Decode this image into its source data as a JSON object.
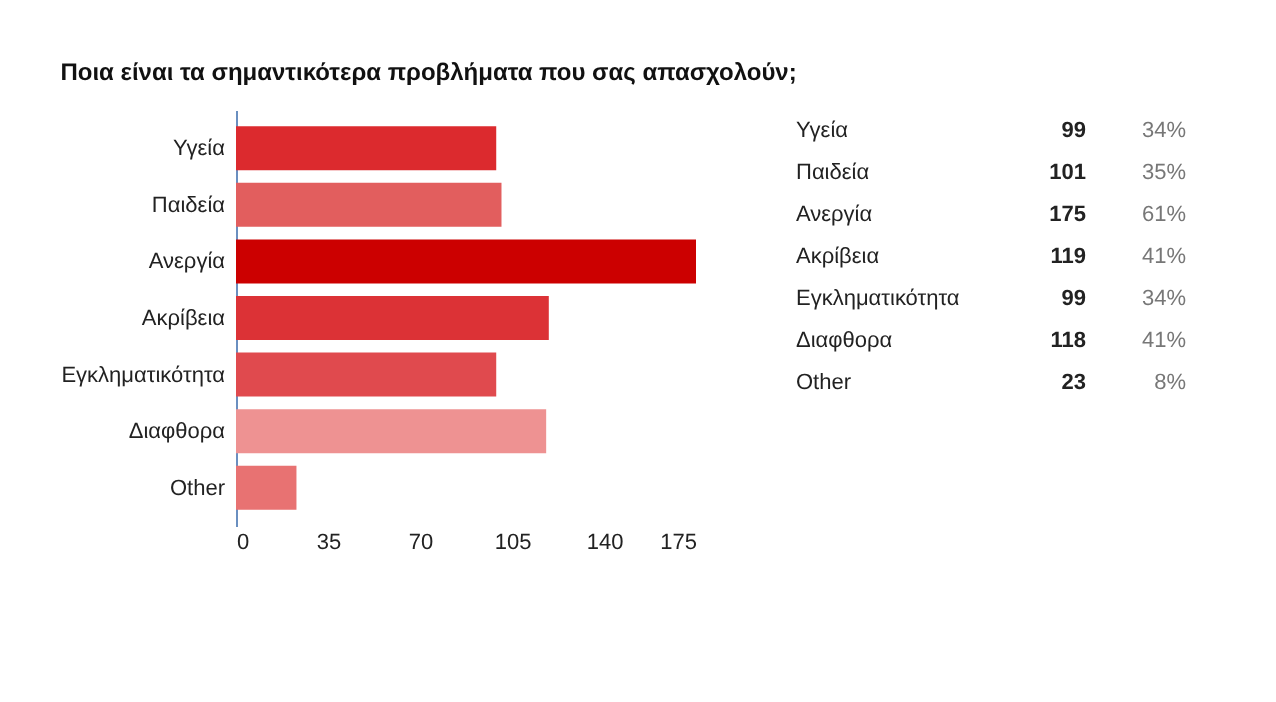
{
  "chart_data": [
    {
      "type": "bar",
      "orientation": "horizontal",
      "title": "Ποια είναι τα σημαντικότερα προβλήματα που σας απασχολούν;",
      "categories": [
        "Υγεία",
        "Παιδεία",
        "Ανεργία",
        "Ακρίβεια",
        "Εγκληματικότητα",
        "Διαφθορα",
        "Other"
      ],
      "values": [
        99,
        101,
        175,
        119,
        99,
        118,
        23
      ],
      "colors": [
        "#dc2a2e",
        "#e25e5e",
        "#cc0000",
        "#dc3236",
        "#e04a4e",
        "#ee9292",
        "#e87272"
      ],
      "xlim": [
        0,
        175
      ],
      "xticks": [
        0,
        35,
        70,
        105,
        140,
        175
      ],
      "grid": false
    },
    {
      "type": "other",
      "annotations": [
        "Υγεία",
        "99",
        "34%",
        "Παιδεία",
        "101",
        "35%",
        "Ανεργία",
        "175",
        "61%",
        "Ακρίβεια",
        "119",
        "41%",
        "Εγκληματικότητα",
        "99",
        "34%",
        "Διαφθορα",
        "118",
        "41%",
        "Other",
        "23",
        "8%"
      ]
    }
  ]
}
